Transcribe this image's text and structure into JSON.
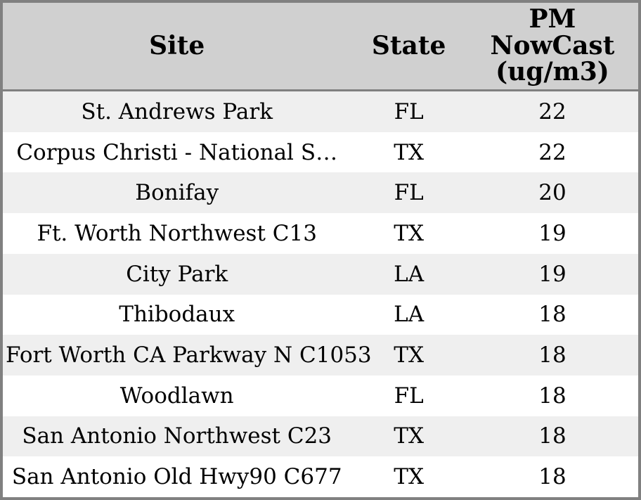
{
  "chart_data": {
    "type": "table",
    "columns": [
      "Site",
      "State",
      "PM NowCast (ug/m3)"
    ],
    "rows": [
      {
        "site": "St. Andrews Park",
        "state": "FL",
        "pm_nowcast": 22
      },
      {
        "site": "Corpus Christi - National S…",
        "state": "TX",
        "pm_nowcast": 22
      },
      {
        "site": "Bonifay",
        "state": "FL",
        "pm_nowcast": 20
      },
      {
        "site": "Ft. Worth Northwest C13",
        "state": "TX",
        "pm_nowcast": 19
      },
      {
        "site": "City Park",
        "state": "LA",
        "pm_nowcast": 19
      },
      {
        "site": "Thibodaux",
        "state": "LA",
        "pm_nowcast": 18
      },
      {
        "site": "Fort Worth CA Parkway N C1053",
        "state": "TX",
        "pm_nowcast": 18
      },
      {
        "site": "Woodlawn",
        "state": "FL",
        "pm_nowcast": 18
      },
      {
        "site": "San Antonio Northwest C23",
        "state": "TX",
        "pm_nowcast": 18
      },
      {
        "site": "San Antonio Old Hwy90 C677",
        "state": "TX",
        "pm_nowcast": 18
      }
    ]
  },
  "table": {
    "header": {
      "site": "Site",
      "state": "State",
      "pm": "PM\nNowCast\n(ug/m3)"
    }
  },
  "colors": {
    "border": "#808080",
    "header_bg": "#d0d0d0",
    "row_alt_bg": "#efefef",
    "row_bg": "#ffffff",
    "text": "#000000"
  }
}
